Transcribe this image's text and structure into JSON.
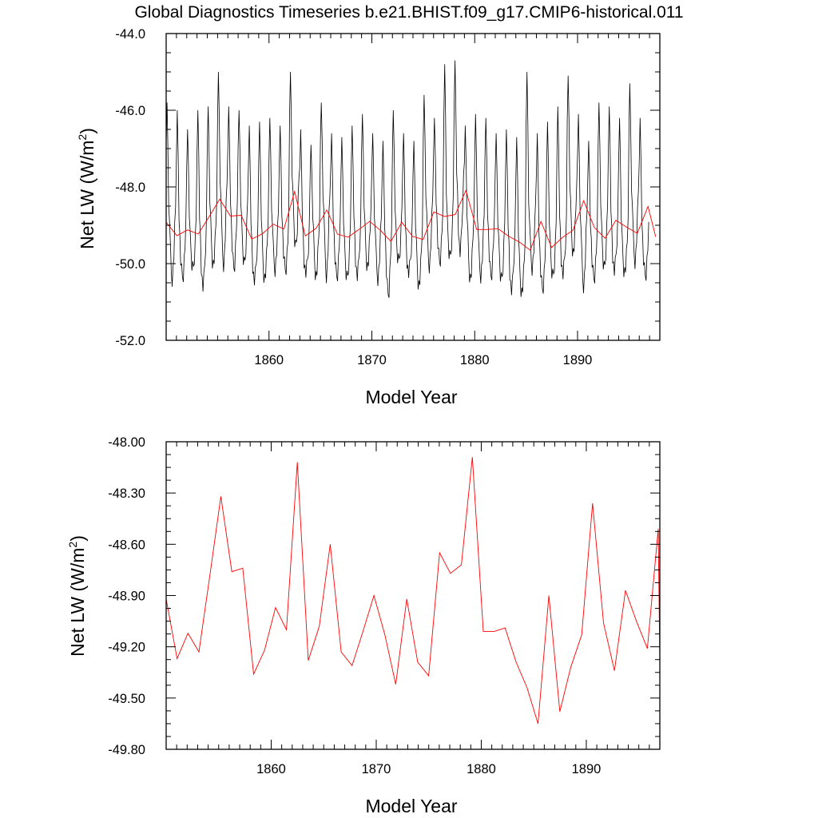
{
  "title": "Global Diagnostics Timeseries b.e21.BHIST.f09_g17.CMIP6-historical.011",
  "colors": {
    "monthly": "#000000",
    "annual": "#ff0000",
    "axis": "#000000"
  },
  "chart_data": [
    {
      "type": "line",
      "panel": "top",
      "xlabel": "Model Year",
      "ylabel": "Net LW (W/m",
      "ylabel_sup": "2",
      "ylabel_close": ")",
      "xlim": [
        1850,
        1898
      ],
      "ylim": [
        -52.0,
        -44.0
      ],
      "xticks": [
        1860,
        1870,
        1880,
        1890
      ],
      "xtick_labels": [
        "1860",
        "1870",
        "1880",
        "1890"
      ],
      "yticks": [
        -52.0,
        -50.0,
        -48.0,
        -46.0,
        -44.0
      ],
      "ytick_labels": [
        "-52.0",
        "-50.0",
        "-48.0",
        "-46.0",
        "-44.0"
      ],
      "series": [
        {
          "name": "monthly",
          "color": "#000000",
          "x_start": 1850.0,
          "x_step": 0.0833333,
          "annual_means": [
            -48.92,
            -49.27,
            -49.12,
            -49.23,
            -48.78,
            -48.32,
            -48.76,
            -48.74,
            -49.36,
            -49.22,
            -48.97,
            -49.1,
            -48.12,
            -49.28,
            -49.08,
            -48.6,
            -49.23,
            -49.31,
            -49.11,
            -48.9,
            -49.13,
            -49.42,
            -48.92,
            -49.29,
            -49.37,
            -48.65,
            -48.77,
            -48.72,
            -48.09,
            -49.11,
            -49.11,
            -49.09,
            -49.29,
            -49.44,
            -49.65,
            -48.9,
            -49.58,
            -49.32,
            -49.13,
            -48.36,
            -49.06,
            -49.34,
            -48.87,
            -49.05,
            -49.21,
            -48.51,
            -49.3
          ],
          "seasonal_max": [
            -45.8,
            -46.0,
            -46.5,
            -46.0,
            -45.9,
            -45.0,
            -45.9,
            -46.0,
            -46.4,
            -46.3,
            -46.2,
            -46.4,
            -45.0,
            -46.5,
            -46.9,
            -45.8,
            -46.6,
            -46.7,
            -46.4,
            -46.1,
            -46.6,
            -46.8,
            -46.0,
            -46.6,
            -46.8,
            -45.6,
            -46.2,
            -44.8,
            -44.7,
            -46.4,
            -46.1,
            -46.2,
            -46.6,
            -46.5,
            -46.7,
            -45.0,
            -46.6,
            -46.3,
            -45.9,
            -45.1,
            -46.1,
            -46.8,
            -45.8,
            -45.9,
            -46.2,
            -45.3,
            -46.2
          ],
          "seasonal_min": [
            -51.1,
            -50.8,
            -50.6,
            -51.3,
            -50.6,
            -50.9,
            -50.8,
            -50.7,
            -50.9,
            -50.9,
            -50.6,
            -50.6,
            -50.4,
            -50.6,
            -50.9,
            -51.2,
            -50.8,
            -50.9,
            -50.9,
            -50.6,
            -50.9,
            -51.5,
            -50.4,
            -50.6,
            -51.1,
            -50.7,
            -50.5,
            -50.4,
            -50.6,
            -51.0,
            -50.8,
            -50.9,
            -51.0,
            -51.3,
            -51.2,
            -50.6,
            -51.1,
            -50.8,
            -50.8,
            -50.4,
            -51.3,
            -50.8,
            -50.8,
            -50.7,
            -50.6,
            -50.6,
            -50.7
          ],
          "note": "monthly values derived from annual means with seasonal max/min envelope"
        },
        {
          "name": "annual",
          "color": "#ff0000",
          "x": [
            1850.0,
            1851.04,
            1852.08,
            1853.12,
            1854.17,
            1855.21,
            1856.25,
            1857.29,
            1858.33,
            1859.37,
            1860.41,
            1861.45,
            1862.49,
            1863.53,
            1864.58,
            1865.62,
            1866.66,
            1867.7,
            1868.74,
            1869.78,
            1870.82,
            1871.86,
            1872.91,
            1873.95,
            1874.99,
            1876.03,
            1877.07,
            1878.11,
            1879.15,
            1880.19,
            1881.23,
            1882.27,
            1883.32,
            1884.36,
            1885.4,
            1886.44,
            1887.48,
            1888.52,
            1889.56,
            1890.6,
            1891.64,
            1892.68,
            1893.73,
            1894.77,
            1895.81,
            1896.85,
            1897.6
          ],
          "values": [
            -48.92,
            -49.27,
            -49.12,
            -49.23,
            -48.78,
            -48.32,
            -48.76,
            -48.74,
            -49.36,
            -49.22,
            -48.97,
            -49.1,
            -48.12,
            -49.28,
            -49.08,
            -48.6,
            -49.23,
            -49.31,
            -49.11,
            -48.9,
            -49.13,
            -49.42,
            -48.92,
            -49.29,
            -49.37,
            -48.65,
            -48.77,
            -48.72,
            -48.09,
            -49.11,
            -49.11,
            -49.09,
            -49.29,
            -49.44,
            -49.65,
            -48.9,
            -49.58,
            -49.32,
            -49.13,
            -48.36,
            -49.06,
            -49.34,
            -48.87,
            -49.05,
            -49.21,
            -48.51,
            -49.3
          ]
        }
      ]
    },
    {
      "type": "line",
      "panel": "bottom",
      "xlabel": "Model Year",
      "ylabel": "Net LW (W/m",
      "ylabel_sup": "2",
      "ylabel_close": ")",
      "xlim": [
        1850,
        1897
      ],
      "ylim": [
        -49.8,
        -48.0
      ],
      "xticks": [
        1860,
        1870,
        1880,
        1890
      ],
      "xtick_labels": [
        "1860",
        "1870",
        "1880",
        "1890"
      ],
      "yticks": [
        -49.8,
        -49.5,
        -49.2,
        -48.9,
        -48.6,
        -48.3,
        -48.0
      ],
      "ytick_labels": [
        "-49.80",
        "-49.50",
        "-49.20",
        "-48.90",
        "-48.60",
        "-48.30",
        "-48.00"
      ],
      "series": [
        {
          "name": "annual",
          "color": "#ff0000",
          "x": [
            1850.0,
            1851.04,
            1852.08,
            1853.12,
            1854.17,
            1855.21,
            1856.25,
            1857.29,
            1858.33,
            1859.37,
            1860.41,
            1861.45,
            1862.49,
            1863.53,
            1864.58,
            1865.62,
            1866.66,
            1867.7,
            1868.74,
            1869.78,
            1870.82,
            1871.86,
            1872.91,
            1873.95,
            1874.99,
            1876.03,
            1877.07,
            1878.11,
            1879.15,
            1880.19,
            1881.23,
            1882.27,
            1883.32,
            1884.36,
            1885.4,
            1886.44,
            1887.48,
            1888.52,
            1889.56,
            1890.6,
            1891.64,
            1892.68,
            1893.73,
            1894.77,
            1895.81,
            1896.85,
            1897.0
          ],
          "values": [
            -48.92,
            -49.27,
            -49.12,
            -49.23,
            -48.78,
            -48.32,
            -48.76,
            -48.74,
            -49.36,
            -49.22,
            -48.97,
            -49.1,
            -48.12,
            -49.28,
            -49.08,
            -48.6,
            -49.23,
            -49.31,
            -49.11,
            -48.9,
            -49.13,
            -49.42,
            -48.92,
            -49.29,
            -49.37,
            -48.65,
            -48.77,
            -48.72,
            -48.09,
            -49.11,
            -49.11,
            -49.09,
            -49.29,
            -49.44,
            -49.65,
            -48.9,
            -49.58,
            -49.32,
            -49.13,
            -48.36,
            -49.06,
            -49.34,
            -48.87,
            -49.05,
            -49.21,
            -48.51,
            -49.3
          ]
        }
      ]
    }
  ]
}
